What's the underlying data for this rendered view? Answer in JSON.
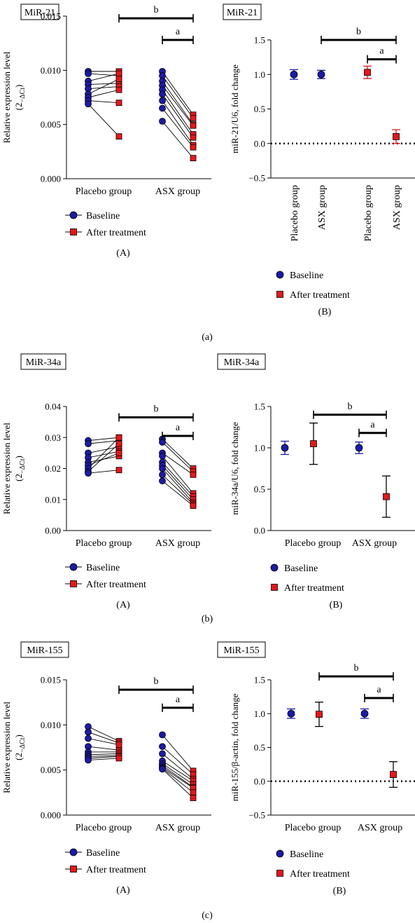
{
  "colors": {
    "baseline": "#1b1ba8",
    "after": "#e5171a",
    "stroke": "#000000"
  },
  "legend": {
    "baseline": "Baseline",
    "after": "After treatment"
  },
  "groups": [
    "Placebo group",
    "ASX group"
  ],
  "figure_labels": [
    "(a)",
    "(b)",
    "(c)"
  ],
  "sig": {
    "a": "a",
    "b": "b"
  },
  "chart_data": [
    {
      "type": "scatter",
      "title": "MiR-21",
      "panel": "(A)",
      "ylabel": "Relative expression level",
      "ylabel_formula": {
        "base": "(2",
        "sub": "−ΔCt",
        "close": ")"
      },
      "categories": [
        "Placebo group",
        "ASX group"
      ],
      "ylim": [
        0,
        0.015
      ],
      "yticks": [
        "0.000",
        "0.005",
        "0.010",
        "0.015"
      ],
      "ytick_values": [
        0,
        0.005,
        0.01,
        0.015
      ],
      "paired": [
        {
          "group": "Placebo group",
          "baseline": [
            0.0099,
            0.0097,
            0.009,
            0.0087,
            0.0083,
            0.0078,
            0.0075,
            0.0072,
            0.0069
          ],
          "after": [
            0.0099,
            0.0095,
            0.0097,
            0.0088,
            0.0085,
            0.0092,
            0.0082,
            0.007,
            0.0039
          ]
        },
        {
          "group": "ASX group",
          "baseline": [
            0.0099,
            0.0095,
            0.009,
            0.0086,
            0.0082,
            0.0078,
            0.0072,
            0.0065,
            0.0053
          ],
          "after": [
            0.0059,
            0.0056,
            0.005,
            0.0049,
            0.0041,
            0.0038,
            0.0031,
            0.0029,
            0.0019
          ]
        }
      ],
      "brackets": [
        {
          "label": "b",
          "y": 0.0148
        },
        {
          "label": "a",
          "y": 0.0128
        }
      ]
    },
    {
      "type": "scatter",
      "title": "MiR-21",
      "panel": "(B)",
      "ylabel": "miR-21/U6, fold change",
      "categories": [
        "Placebo group",
        "ASX group",
        "Placebo group",
        "ASX group"
      ],
      "ylim": [
        -0.5,
        1.5
      ],
      "yticks": [
        "−0.5",
        "0.0",
        "0.5",
        "1.0",
        "1.5"
      ],
      "ytick_values": [
        -0.5,
        0,
        0.5,
        1.0,
        1.5
      ],
      "reference_line": 0,
      "series": [
        {
          "name": "Baseline",
          "x": [
            "Placebo group",
            "ASX group"
          ],
          "mean": [
            1.0,
            1.0
          ],
          "err": [
            0.07,
            0.06
          ]
        },
        {
          "name": "After treatment",
          "x": [
            "Placebo group",
            "ASX group"
          ],
          "mean": [
            1.03,
            0.1
          ],
          "err": [
            0.09,
            0.1
          ]
        }
      ],
      "brackets": [
        {
          "label": "b",
          "y": 1.5
        },
        {
          "label": "a",
          "y": 1.22
        }
      ]
    },
    {
      "type": "scatter",
      "title": "MiR-34a",
      "panel": "(A)",
      "ylabel": "Relative expression level",
      "ylabel_formula": {
        "base": "(2",
        "sub": "−ΔCt",
        "close": ")"
      },
      "categories": [
        "Placebo group",
        "ASX group"
      ],
      "ylim": [
        0,
        0.04
      ],
      "yticks": [
        "0.00",
        "0.01",
        "0.02",
        "0.03",
        "0.04"
      ],
      "ytick_values": [
        0,
        0.01,
        0.02,
        0.03,
        0.04
      ],
      "paired": [
        {
          "group": "Placebo group",
          "baseline": [
            0.029,
            0.028,
            0.025,
            0.0235,
            0.022,
            0.021,
            0.02,
            0.019,
            0.0185
          ],
          "after": [
            0.03,
            0.029,
            0.027,
            0.0255,
            0.024,
            0.025,
            0.03,
            0.028,
            0.0195
          ]
        },
        {
          "group": "ASX group",
          "baseline": [
            0.0295,
            0.0285,
            0.025,
            0.024,
            0.022,
            0.021,
            0.02,
            0.018,
            0.016
          ],
          "after": [
            0.02,
            0.019,
            0.018,
            0.012,
            0.011,
            0.01,
            0.009,
            0.0085,
            0.008
          ]
        }
      ],
      "brackets": [
        {
          "label": "b",
          "y": 0.0365
        },
        {
          "label": "a",
          "y": 0.0305
        }
      ]
    },
    {
      "type": "scatter",
      "title": "MiR-34a",
      "panel": "(B)",
      "ylabel": "miR-34a/U6, fold change",
      "categories": [
        "Placebo group",
        "ASX group"
      ],
      "ylim": [
        0,
        1.5
      ],
      "yticks": [
        "0.0",
        "0.5",
        "1.0",
        "1.5"
      ],
      "ytick_values": [
        0,
        0.5,
        1.0,
        1.5
      ],
      "series": [
        {
          "name": "Baseline",
          "x": [
            "Placebo group",
            "ASX group"
          ],
          "mean": [
            1.0,
            1.0
          ],
          "err": [
            0.08,
            0.07
          ]
        },
        {
          "name": "After treatment",
          "x": [
            "Placebo group",
            "ASX group"
          ],
          "mean": [
            1.05,
            0.41
          ],
          "err": [
            0.25,
            0.25
          ]
        }
      ],
      "brackets": [
        {
          "label": "b",
          "y": 1.4
        },
        {
          "label": "a",
          "y": 1.18
        }
      ]
    },
    {
      "type": "scatter",
      "title": "MiR-155",
      "panel": "(A)",
      "ylabel": "Relative expression level",
      "ylabel_formula": {
        "base": "(2",
        "sub": "−ΔCt",
        "close": ")"
      },
      "categories": [
        "Placebo group",
        "ASX group"
      ],
      "ylim": [
        0,
        0.015
      ],
      "yticks": [
        "0.000",
        "0.005",
        "0.010",
        "0.015"
      ],
      "ytick_values": [
        0,
        0.005,
        0.01,
        0.015
      ],
      "paired": [
        {
          "group": "Placebo group",
          "baseline": [
            0.0098,
            0.0092,
            0.0085,
            0.0076,
            0.007,
            0.0067,
            0.0065,
            0.0063,
            0.0061
          ],
          "after": [
            0.0082,
            0.008,
            0.0078,
            0.0072,
            0.007,
            0.0068,
            0.0066,
            0.0065,
            0.0063
          ]
        },
        {
          "group": "ASX group",
          "baseline": [
            0.0089,
            0.0076,
            0.0068,
            0.006,
            0.0057,
            0.0055,
            0.0053,
            0.0052,
            0.0051
          ],
          "after": [
            0.0049,
            0.0045,
            0.004,
            0.0038,
            0.0034,
            0.0031,
            0.003,
            0.0025,
            0.0019
          ]
        }
      ],
      "brackets": [
        {
          "label": "b",
          "y": 0.0139
        },
        {
          "label": "a",
          "y": 0.0119
        }
      ]
    },
    {
      "type": "scatter",
      "title": "MiR-155",
      "panel": "(B)",
      "ylabel": "miR-155/β-actin, fold change",
      "categories": [
        "Placebo group",
        "ASX group"
      ],
      "ylim": [
        -0.5,
        1.5
      ],
      "yticks": [
        "−0.5",
        "0.0",
        "0.5",
        "1.0",
        "1.5"
      ],
      "ytick_values": [
        -0.5,
        0,
        0.5,
        1.0,
        1.5
      ],
      "reference_line": 0,
      "series": [
        {
          "name": "Baseline",
          "x": [
            "Placebo group",
            "ASX group"
          ],
          "mean": [
            1.0,
            1.0
          ],
          "err": [
            0.07,
            0.07
          ]
        },
        {
          "name": "After treatment",
          "x": [
            "Placebo group",
            "ASX group"
          ],
          "mean": [
            0.99,
            0.1
          ],
          "err": [
            0.18,
            0.19
          ]
        }
      ],
      "brackets": [
        {
          "label": "b",
          "y": 1.55
        },
        {
          "label": "a",
          "y": 1.23
        }
      ]
    }
  ]
}
